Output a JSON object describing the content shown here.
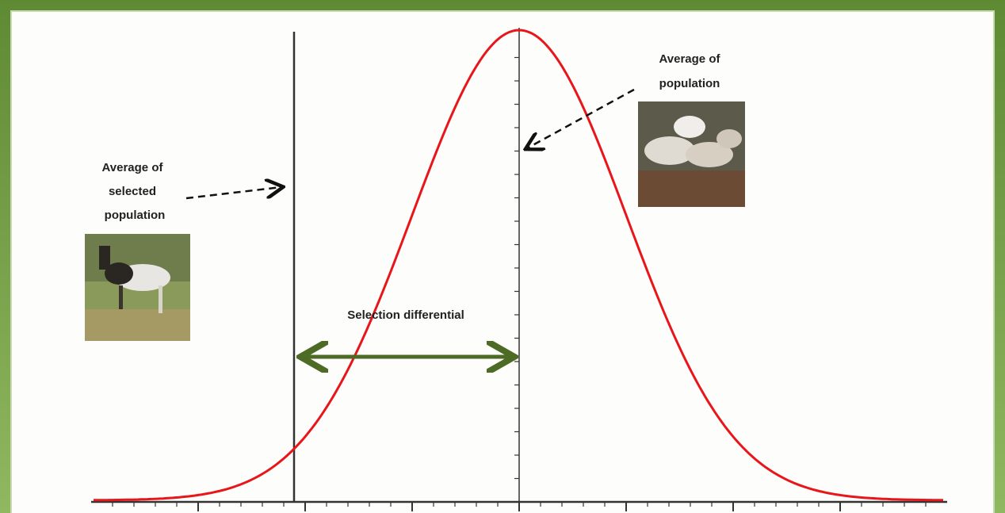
{
  "annotations": [
    {
      "lines": [
        "Average of",
        "population"
      ]
    },
    {
      "lines": [
        "Average of",
        "selected",
        "population"
      ]
    },
    {
      "lines": [
        "Selection differential"
      ]
    }
  ]
}
